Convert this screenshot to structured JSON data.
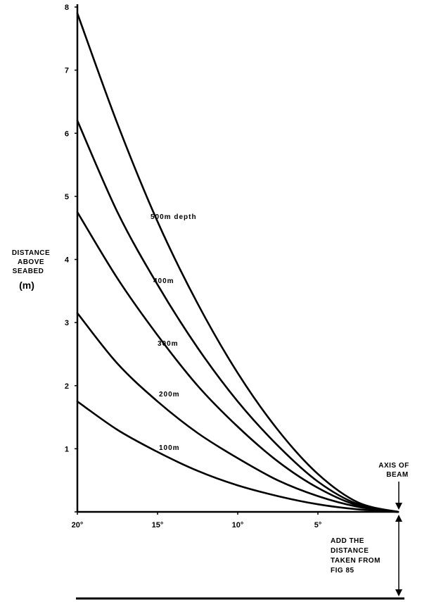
{
  "chart_data": {
    "type": "line",
    "title": "",
    "xlabel": "",
    "ylabel": [
      "DISTANCE",
      "ABOVE",
      "SEABED"
    ],
    "ylabel_unit": "(m)",
    "xlim": [
      20,
      0
    ],
    "ylim": [
      0,
      8
    ],
    "grid": false,
    "x_ticks": [
      20,
      15,
      10,
      5
    ],
    "x_tick_labels": [
      "20°",
      "15°",
      "10°",
      "5°"
    ],
    "y_ticks": [
      0,
      1,
      2,
      3,
      4,
      5,
      6,
      7,
      8
    ],
    "y_tick_labels": [
      "0",
      "1",
      "2",
      "3",
      "4",
      "5",
      "6",
      "7",
      "8"
    ],
    "x": [
      20,
      17.5,
      15,
      12.5,
      10,
      7.5,
      5,
      2.5,
      0
    ],
    "series": [
      {
        "name": "100m",
        "label": "100m",
        "values": [
          1.75,
          1.3,
          0.95,
          0.65,
          0.42,
          0.25,
          0.12,
          0.04,
          0
        ]
      },
      {
        "name": "200m",
        "label": "200m",
        "values": [
          3.15,
          2.35,
          1.75,
          1.25,
          0.85,
          0.5,
          0.25,
          0.08,
          0
        ]
      },
      {
        "name": "300m",
        "label": "300m",
        "values": [
          4.75,
          3.7,
          2.8,
          2.0,
          1.35,
          0.8,
          0.38,
          0.1,
          0
        ]
      },
      {
        "name": "400m",
        "label": "400m",
        "values": [
          6.2,
          4.75,
          3.6,
          2.6,
          1.75,
          1.05,
          0.48,
          0.12,
          0
        ]
      },
      {
        "name": "500m",
        "label": "500m depth",
        "values": [
          7.9,
          6.15,
          4.6,
          3.3,
          2.2,
          1.3,
          0.6,
          0.15,
          0
        ]
      }
    ],
    "annotations": {
      "axis_label": [
        "AXIS OF",
        "BEAM"
      ],
      "note": [
        "ADD THE",
        "DISTANCE",
        "TAKEN FROM",
        "FIG 85"
      ]
    }
  }
}
